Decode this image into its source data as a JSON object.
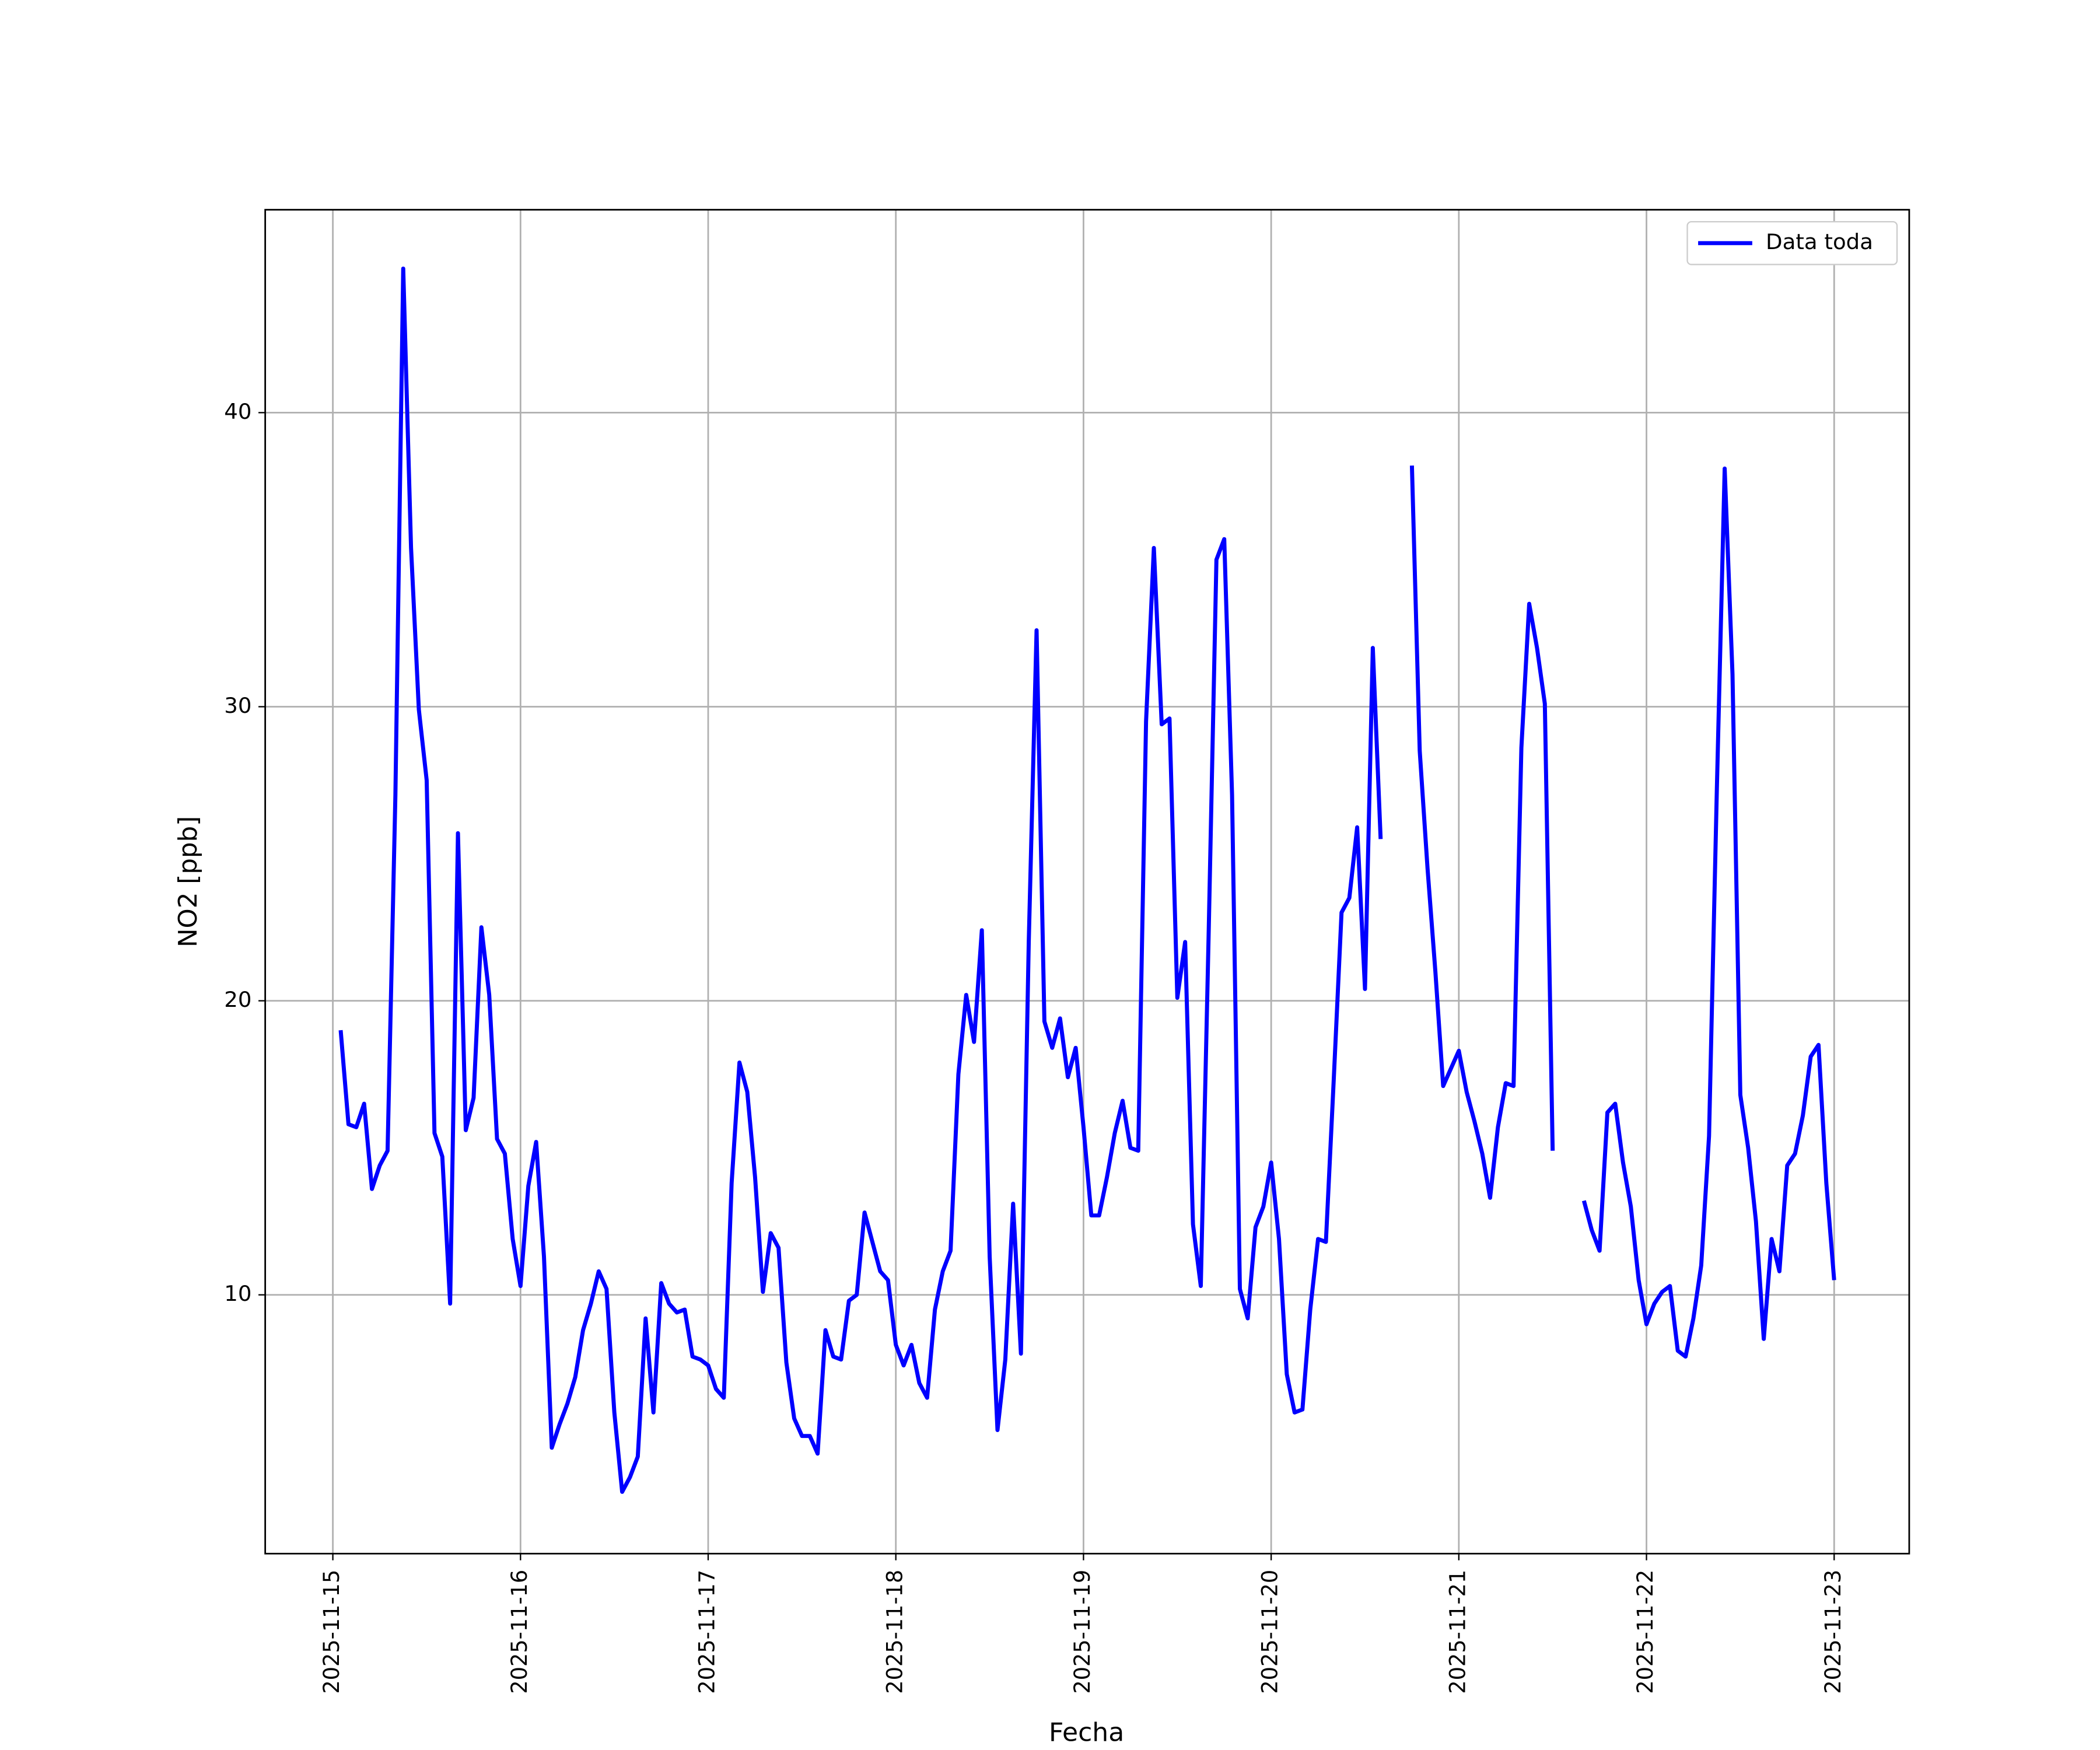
{
  "chart_data": {
    "type": "line",
    "xlabel": "Fecha",
    "ylabel": "NO2 [ppb]",
    "x": [
      "2025-11-15T01:00",
      "2025-11-15T02:00",
      "2025-11-15T03:00",
      "2025-11-15T04:00",
      "2025-11-15T05:00",
      "2025-11-15T06:00",
      "2025-11-15T07:00",
      "2025-11-15T08:00",
      "2025-11-15T09:00",
      "2025-11-15T10:00",
      "2025-11-15T11:00",
      "2025-11-15T12:00",
      "2025-11-15T13:00",
      "2025-11-15T14:00",
      "2025-11-15T15:00",
      "2025-11-15T16:00",
      "2025-11-15T17:00",
      "2025-11-15T18:00",
      "2025-11-15T19:00",
      "2025-11-15T20:00",
      "2025-11-15T21:00",
      "2025-11-15T22:00",
      "2025-11-15T23:00",
      "2025-11-16T00:00",
      "2025-11-16T01:00",
      "2025-11-16T02:00",
      "2025-11-16T03:00",
      "2025-11-16T04:00",
      "2025-11-16T05:00",
      "2025-11-16T06:00",
      "2025-11-16T07:00",
      "2025-11-16T08:00",
      "2025-11-16T09:00",
      "2025-11-16T10:00",
      "2025-11-16T11:00",
      "2025-11-16T12:00",
      "2025-11-16T13:00",
      "2025-11-16T14:00",
      "2025-11-16T15:00",
      "2025-11-16T16:00",
      "2025-11-16T17:00",
      "2025-11-16T18:00",
      "2025-11-16T19:00",
      "2025-11-16T20:00",
      "2025-11-16T21:00",
      "2025-11-16T22:00",
      "2025-11-16T23:00",
      "2025-11-17T00:00",
      "2025-11-17T01:00",
      "2025-11-17T02:00",
      "2025-11-17T03:00",
      "2025-11-17T04:00",
      "2025-11-17T05:00",
      "2025-11-17T06:00",
      "2025-11-17T07:00",
      "2025-11-17T08:00",
      "2025-11-17T09:00",
      "2025-11-17T10:00",
      "2025-11-17T11:00",
      "2025-11-17T12:00",
      "2025-11-17T13:00",
      "2025-11-17T14:00",
      "2025-11-17T15:00",
      "2025-11-17T16:00",
      "2025-11-17T17:00",
      "2025-11-17T18:00",
      "2025-11-17T19:00",
      "2025-11-17T20:00",
      "2025-11-17T21:00",
      "2025-11-17T22:00",
      "2025-11-17T23:00",
      "2025-11-18T00:00",
      "2025-11-18T01:00",
      "2025-11-18T02:00",
      "2025-11-18T03:00",
      "2025-11-18T04:00",
      "2025-11-18T05:00",
      "2025-11-18T06:00",
      "2025-11-18T07:00",
      "2025-11-18T08:00",
      "2025-11-18T09:00",
      "2025-11-18T10:00",
      "2025-11-18T11:00",
      "2025-11-18T12:00",
      "2025-11-18T13:00",
      "2025-11-18T14:00",
      "2025-11-18T15:00",
      "2025-11-18T16:00",
      "2025-11-18T17:00",
      "2025-11-18T18:00",
      "2025-11-18T19:00",
      "2025-11-18T20:00",
      "2025-11-18T21:00",
      "2025-11-18T22:00",
      "2025-11-18T23:00",
      "2025-11-19T00:00",
      "2025-11-19T01:00",
      "2025-11-19T02:00",
      "2025-11-19T03:00",
      "2025-11-19T04:00",
      "2025-11-19T05:00",
      "2025-11-19T06:00",
      "2025-11-19T07:00",
      "2025-11-19T08:00",
      "2025-11-19T09:00",
      "2025-11-19T10:00",
      "2025-11-19T11:00",
      "2025-11-19T12:00",
      "2025-11-19T13:00",
      "2025-11-19T14:00",
      "2025-11-19T15:00",
      "2025-11-19T16:00",
      "2025-11-19T17:00",
      "2025-11-19T18:00",
      "2025-11-19T19:00",
      "2025-11-19T20:00",
      "2025-11-19T21:00",
      "2025-11-19T22:00",
      "2025-11-19T23:00",
      "2025-11-20T00:00",
      "2025-11-20T01:00",
      "2025-11-20T02:00",
      "2025-11-20T03:00",
      "2025-11-20T04:00",
      "2025-11-20T05:00",
      "2025-11-20T06:00",
      "2025-11-20T07:00",
      "2025-11-20T08:00",
      "2025-11-20T09:00",
      "2025-11-20T10:00",
      "2025-11-20T11:00",
      "2025-11-20T12:00",
      "2025-11-20T13:00",
      "2025-11-20T14:00",
      "2025-11-20T15:00",
      "2025-11-20T16:00",
      "2025-11-20T17:00",
      "2025-11-20T18:00",
      "2025-11-20T19:00",
      "2025-11-20T20:00",
      "2025-11-20T21:00",
      "2025-11-20T22:00",
      "2025-11-20T23:00",
      "2025-11-21T00:00",
      "2025-11-21T01:00",
      "2025-11-21T02:00",
      "2025-11-21T03:00",
      "2025-11-21T04:00",
      "2025-11-21T05:00",
      "2025-11-21T06:00",
      "2025-11-21T07:00",
      "2025-11-21T08:00",
      "2025-11-21T09:00",
      "2025-11-21T10:00",
      "2025-11-21T11:00",
      "2025-11-21T12:00",
      "2025-11-21T13:00",
      "2025-11-21T14:00",
      "2025-11-21T15:00",
      "2025-11-21T16:00",
      "2025-11-21T17:00",
      "2025-11-21T18:00",
      "2025-11-21T19:00",
      "2025-11-21T20:00",
      "2025-11-21T21:00",
      "2025-11-21T22:00",
      "2025-11-21T23:00",
      "2025-11-22T00:00",
      "2025-11-22T01:00",
      "2025-11-22T02:00",
      "2025-11-22T03:00",
      "2025-11-22T04:00",
      "2025-11-22T05:00",
      "2025-11-22T06:00",
      "2025-11-22T07:00",
      "2025-11-22T08:00",
      "2025-11-22T09:00",
      "2025-11-22T10:00",
      "2025-11-22T11:00",
      "2025-11-22T12:00",
      "2025-11-22T13:00",
      "2025-11-22T14:00",
      "2025-11-22T15:00",
      "2025-11-22T16:00",
      "2025-11-22T17:00",
      "2025-11-22T18:00",
      "2025-11-22T19:00",
      "2025-11-22T20:00",
      "2025-11-22T21:00",
      "2025-11-22T22:00",
      "2025-11-22T23:00",
      "2025-11-23T00:00"
    ],
    "series": [
      {
        "name": "Data toda",
        "color": "#0000ff",
        "values": [
          19.0,
          15.8,
          15.7,
          16.5,
          13.6,
          14.4,
          14.9,
          27,
          44.9,
          35.4,
          29.9,
          27.5,
          15.5,
          14.7,
          9.7,
          25.7,
          15.6,
          16.7,
          22.5,
          20.2,
          15.3,
          14.8,
          11.9,
          10.3,
          13.7,
          15.2,
          11.3,
          4.8,
          5.6,
          6.3,
          7.2,
          8.8,
          9.7,
          10.8,
          10.2,
          6.0,
          3.3,
          3.8,
          4.5,
          9.2,
          6.0,
          10.4,
          9.7,
          9.4,
          9.5,
          7.9,
          7.8,
          7.6,
          6.8,
          6.5,
          13.8,
          17.9,
          16.9,
          14.0,
          10.1,
          12.1,
          11.6,
          7.7,
          5.8,
          5.2,
          5.2,
          4.6,
          8.8,
          7.9,
          7.8,
          9.8,
          10.0,
          12.8,
          11.8,
          10.8,
          10.5,
          8.3,
          7.6,
          8.3,
          7.0,
          6.5,
          9.5,
          10.8,
          11.5,
          17.5,
          20.2,
          18.6,
          22.4,
          11.3,
          5.4,
          7.8,
          13.1,
          8.0,
          22.0,
          32.6,
          19.3,
          18.4,
          19.4,
          17.4,
          18.4,
          15.7,
          12.7,
          12.7,
          14.0,
          15.5,
          16.6,
          15.0,
          14.9,
          29.5,
          35.4,
          29.4,
          29.6,
          20.1,
          22.0,
          12.4,
          10.3,
          22.2,
          35.0,
          35.7,
          27.0,
          10.2,
          9.2,
          12.3,
          13.0,
          14.5,
          11.9,
          7.3,
          6.0,
          6.1,
          9.5,
          11.9,
          11.8,
          17.3,
          23.0,
          23.5,
          25.9,
          20.4,
          32.0,
          25.5,
          null,
          null,
          null,
          38.2,
          28.5,
          24.5,
          21.0,
          17.1,
          17.7,
          18.3,
          16.9,
          15.9,
          14.8,
          13.3,
          15.7,
          17.2,
          17.1,
          28.6,
          33.5,
          32.0,
          30.1,
          14.9,
          null,
          null,
          null,
          13.2,
          12.2,
          11.5,
          16.2,
          16.5,
          14.5,
          13.0,
          10.5,
          9.0,
          9.7,
          10.1,
          10.3,
          8.1,
          7.9,
          9.2,
          11.0,
          15.4,
          27.2,
          38.1,
          31.1,
          16.8,
          15.0,
          12.5,
          8.5,
          11.9,
          10.8,
          14.4,
          14.8,
          16.1,
          18.1,
          18.5,
          13.8,
          10.5
        ]
      }
    ],
    "xlim": [
      "2025-11-14T15:21",
      "2025-11-23T09:36"
    ],
    "xticks": [
      "2025-11-15",
      "2025-11-16",
      "2025-11-17",
      "2025-11-18",
      "2025-11-19",
      "2025-11-20",
      "2025-11-21",
      "2025-11-22",
      "2025-11-23"
    ],
    "ylim": [
      1.2,
      46.9
    ],
    "yticks": [
      10,
      20,
      30,
      40
    ],
    "grid": true,
    "legend": "upper right"
  }
}
